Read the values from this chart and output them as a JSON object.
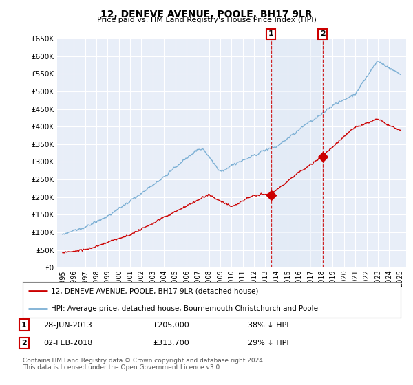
{
  "title": "12, DENEVE AVENUE, POOLE, BH17 9LR",
  "subtitle": "Price paid vs. HM Land Registry's House Price Index (HPI)",
  "hpi_label": "HPI: Average price, detached house, Bournemouth Christchurch and Poole",
  "property_label": "12, DENEVE AVENUE, POOLE, BH17 9LR (detached house)",
  "footnote": "Contains HM Land Registry data © Crown copyright and database right 2024.\nThis data is licensed under the Open Government Licence v3.0.",
  "transaction1_date": "28-JUN-2013",
  "transaction1_price": "£205,000",
  "transaction1_hpi": "38% ↓ HPI",
  "transaction2_date": "02-FEB-2018",
  "transaction2_price": "£313,700",
  "transaction2_hpi": "29% ↓ HPI",
  "ylim": [
    0,
    650000
  ],
  "yticks": [
    0,
    50000,
    100000,
    150000,
    200000,
    250000,
    300000,
    350000,
    400000,
    450000,
    500000,
    550000,
    600000,
    650000
  ],
  "plot_bg": "#e8eef8",
  "hpi_color": "#7bafd4",
  "price_color": "#cc0000",
  "vline_color": "#cc0000",
  "shade_color": "#dce8f5",
  "grid_color": "#ffffff",
  "marker1_x": 2013.5,
  "marker2_x": 2018.1,
  "marker1_y": 205000,
  "marker2_y": 313700,
  "xlim_left": 1994.5,
  "xlim_right": 2025.5
}
